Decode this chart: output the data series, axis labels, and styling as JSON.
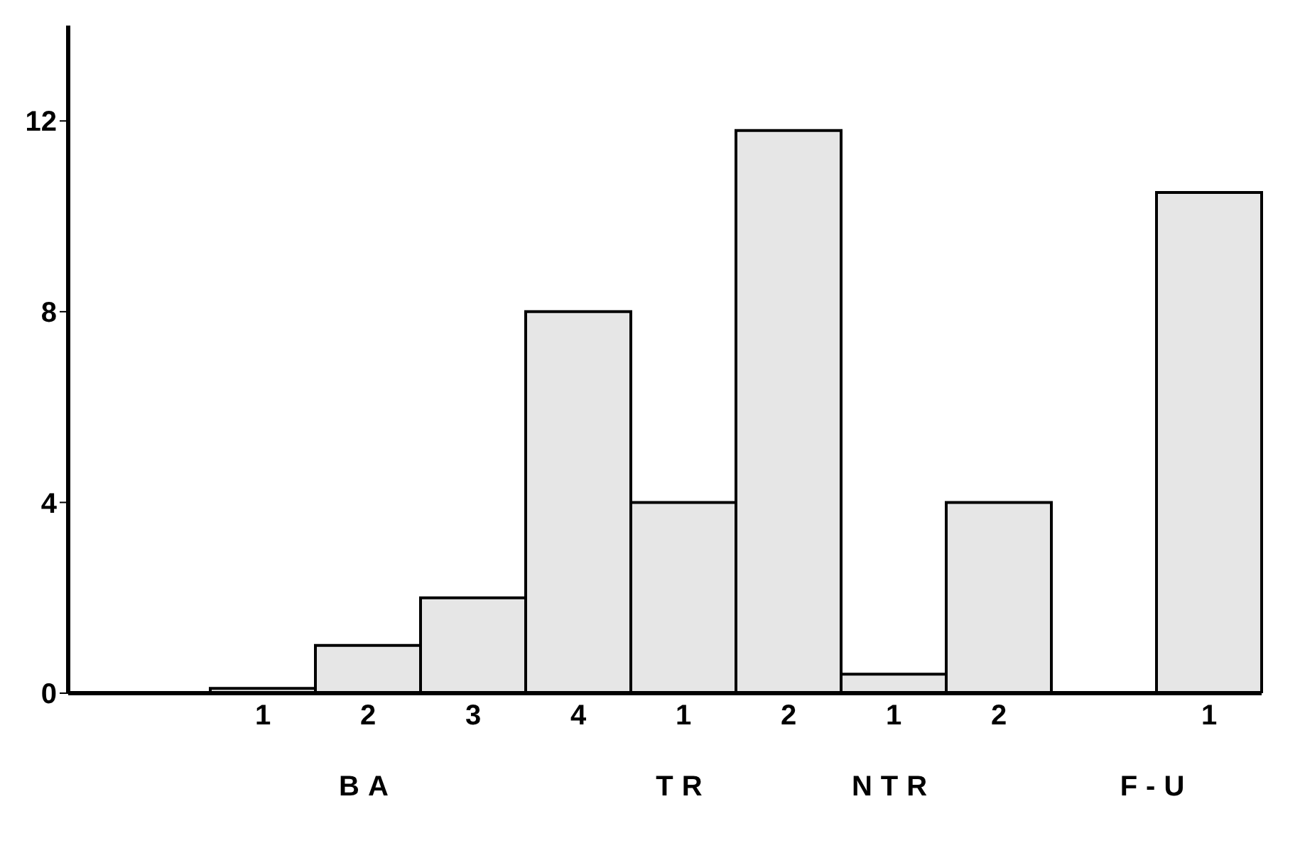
{
  "chart_data": {
    "type": "bar",
    "categories": [
      "1",
      "2",
      "3",
      "4",
      "1",
      "2",
      "1",
      "2",
      null,
      "1"
    ],
    "values": [
      0.1,
      1,
      2,
      8,
      4,
      11.8,
      0.4,
      4,
      null,
      10.5
    ],
    "color": "#e6e6e6",
    "ylim": [
      0,
      14
    ],
    "yticks": [
      0,
      4,
      8,
      12
    ],
    "annotations": [
      "BA",
      "TR",
      "NTR",
      "F-U"
    ],
    "grid": false,
    "legend": false
  }
}
